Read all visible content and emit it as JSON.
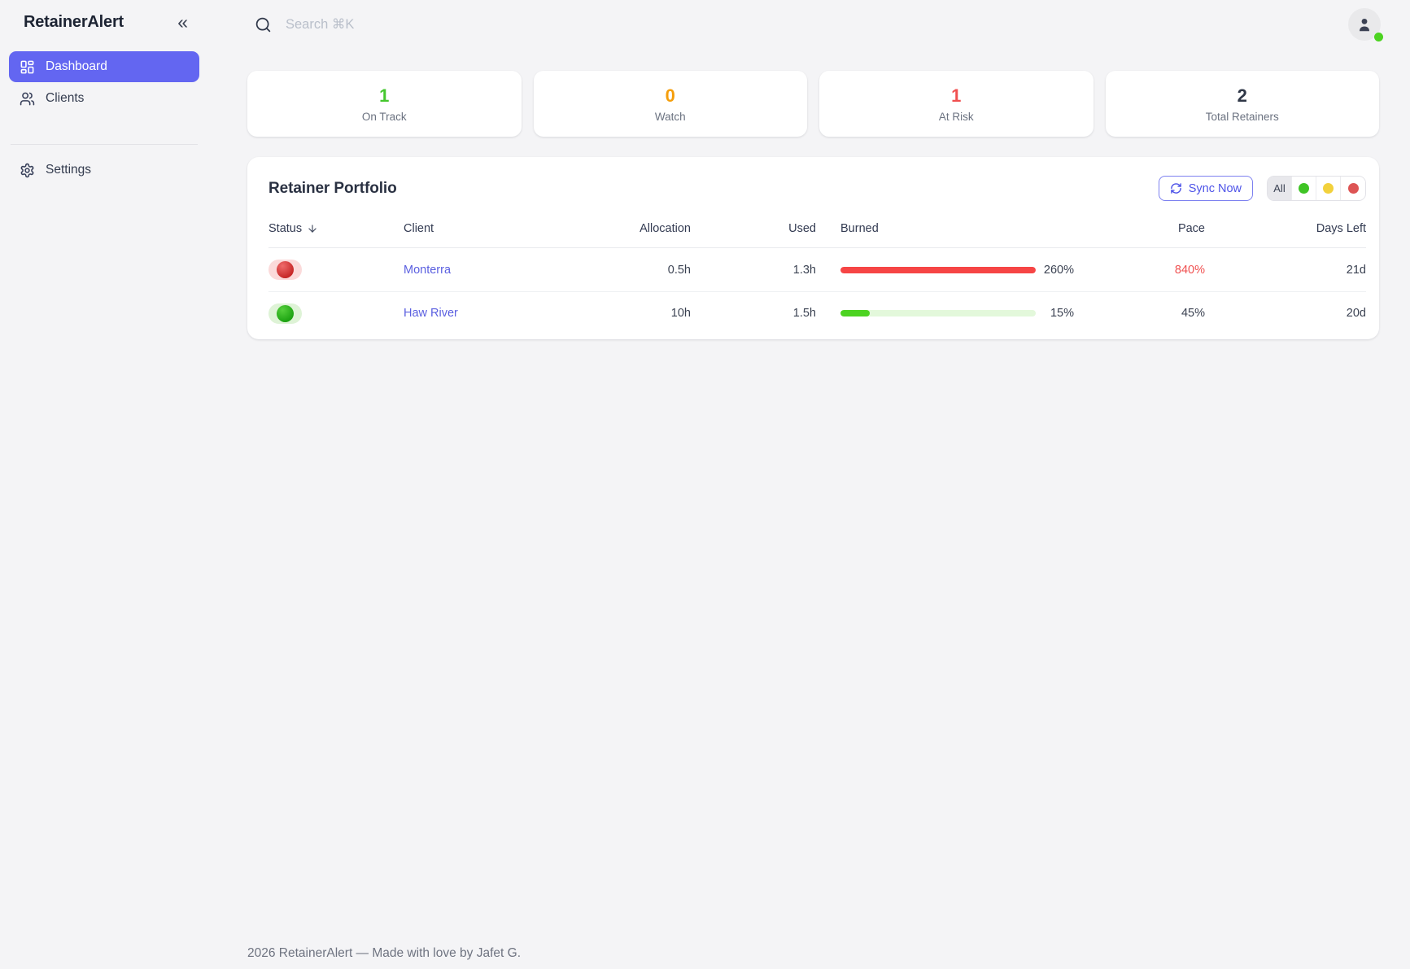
{
  "app": {
    "title": "RetainerAlert"
  },
  "sidebar": {
    "collapse_icon": "«",
    "items": [
      {
        "label": "Dashboard",
        "active": true
      },
      {
        "label": "Clients",
        "active": false
      }
    ],
    "settings_label": "Settings"
  },
  "topbar": {
    "search_placeholder": "Search ⌘K",
    "search_value": ""
  },
  "stats": [
    {
      "value": "1",
      "label": "On Track",
      "color": "#45c72e"
    },
    {
      "value": "0",
      "label": "Watch",
      "color": "#f59e0b"
    },
    {
      "value": "1",
      "label": "At Risk",
      "color": "#f05050"
    },
    {
      "value": "2",
      "label": "Total Retainers",
      "color": "#2f3747"
    }
  ],
  "portfolio": {
    "title": "Retainer Portfolio",
    "sync_label": "Sync Now",
    "filters": {
      "all_label": "All",
      "dots": [
        "#3fc425",
        "#f2d13c",
        "#dd5454"
      ]
    },
    "columns": [
      "Status",
      "Client",
      "Allocation",
      "Used",
      "Burned",
      "Pace",
      "Days Left"
    ],
    "rows": [
      {
        "status": "red",
        "client": "Monterra",
        "allocation": "0.5h",
        "used": "1.3h",
        "burned_pct": "260%",
        "burned_fill": 100,
        "bar_color": "#f64545",
        "bar_track": "#fbe0e0",
        "pace": "840%",
        "pace_color": "#f05050",
        "days_left": "21d"
      },
      {
        "status": "green",
        "client": "Haw River",
        "allocation": "10h",
        "used": "1.5h",
        "burned_pct": "15%",
        "burned_fill": 15,
        "bar_color": "#4cd321",
        "bar_track": "#e3f8db",
        "pace": "45%",
        "pace_color": "#3b4252",
        "days_left": "20d"
      }
    ]
  },
  "footer": {
    "text": "2026 RetainerAlert — Made with love by Jafet G."
  },
  "colors": {
    "accent": "#6366f1",
    "presence": "#4cd321"
  }
}
